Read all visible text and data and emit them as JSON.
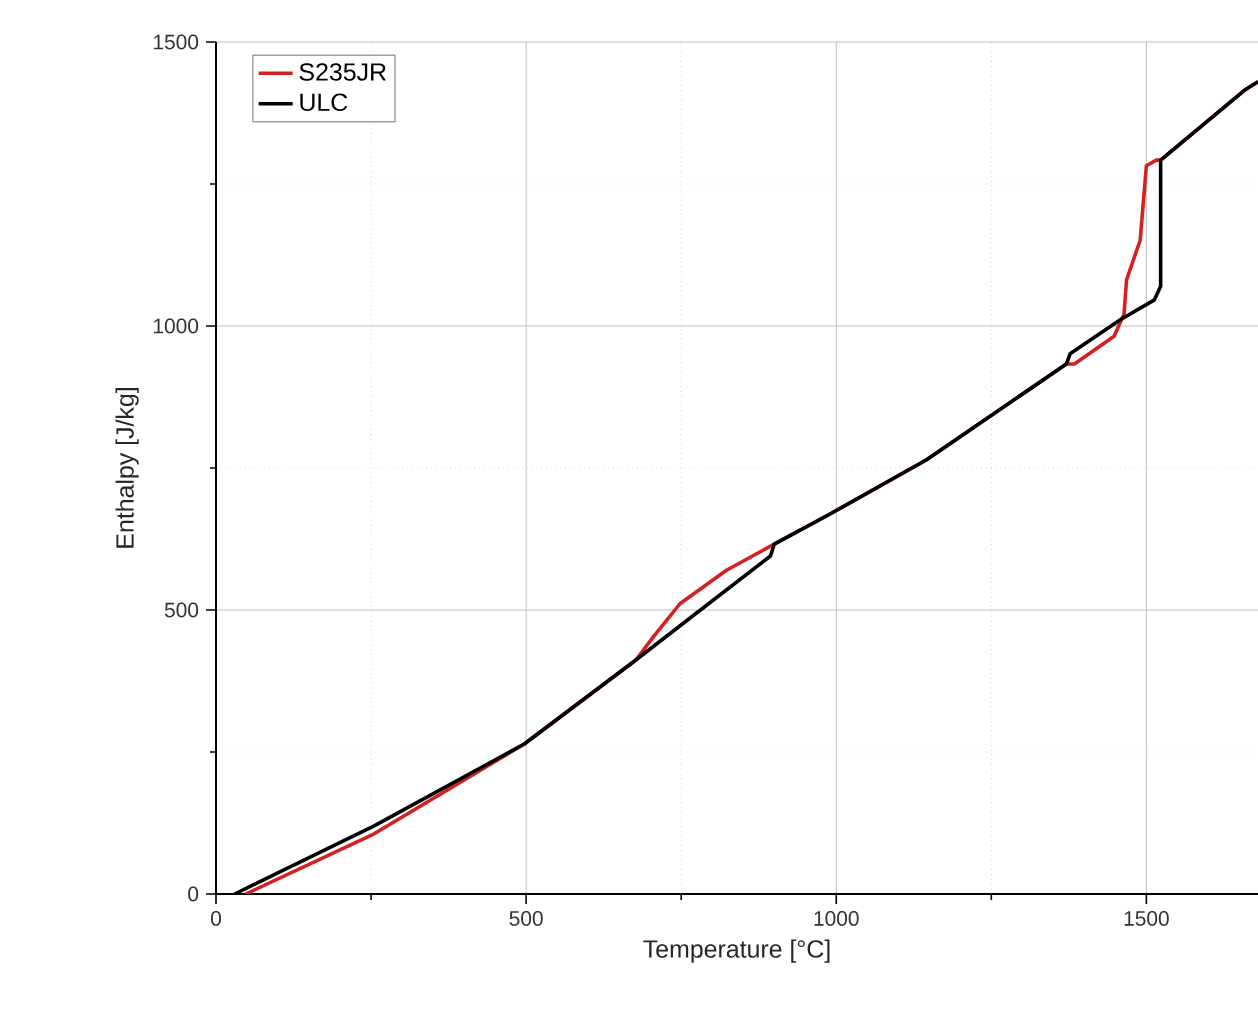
{
  "chart_data": {
    "type": "line",
    "xlabel": "Temperature [°C]",
    "ylabel": "Enthalpy [J/kg]",
    "xlim": [
      0,
      1680
    ],
    "ylim": [
      0,
      1500
    ],
    "xticks": [
      0,
      {
        "value": 250,
        "label": null
      },
      500,
      {
        "value": 750,
        "label": null
      },
      1000,
      {
        "value": 1250,
        "label": null
      },
      1500
    ],
    "yticks": [
      0,
      {
        "value": 250,
        "label": null
      },
      500,
      {
        "value": 750,
        "label": null
      },
      1000,
      {
        "value": 1250,
        "label": null
      },
      1500
    ],
    "grid": true,
    "legend": "top left",
    "line_style": "solid",
    "series": [
      {
        "name": "S235JR",
        "color": "#d42020",
        "x": [
          48,
          255,
          497,
          677,
          706,
          748,
          823,
          900,
          990,
          1145,
          1371,
          1384,
          1448,
          1464,
          1468,
          1490,
          1500,
          1516,
          1523,
          1658,
          1680
        ],
        "values": [
          0,
          106,
          264,
          412,
          454,
          511,
          570,
          616,
          669,
          764,
          933,
          933,
          982,
          1021,
          1081,
          1151,
          1282,
          1292,
          1292,
          1415,
          1430
        ]
      },
      {
        "name": "ULC",
        "color": "#000000",
        "x": [
          30,
          255,
          497,
          677,
          781,
          894,
          900,
          990,
          1145,
          1371,
          1377,
          1458,
          1513,
          1523,
          1523,
          1658,
          1680
        ],
        "values": [
          0,
          120,
          264,
          412,
          500,
          595,
          616,
          669,
          764,
          933,
          951,
          1011,
          1046,
          1070,
          1292,
          1415,
          1430
        ]
      }
    ]
  }
}
